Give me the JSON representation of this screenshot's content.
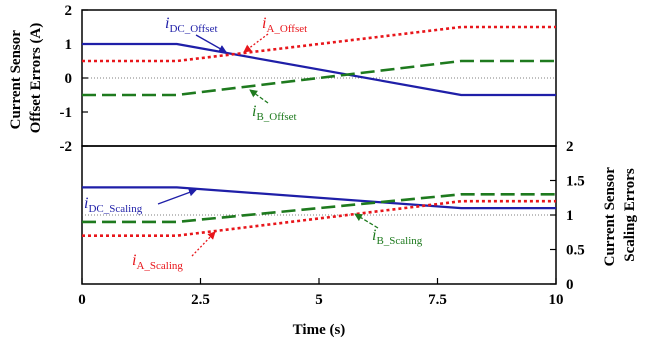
{
  "chart_data": [
    {
      "type": "line",
      "panel": "top",
      "ylabel": [
        "Current Sensor",
        "Offset Errors (A)"
      ],
      "xlim": [
        0,
        10
      ],
      "ylim": [
        -2,
        2
      ],
      "yticks": [
        "2",
        "1",
        "0",
        "-1",
        "-2"
      ],
      "zero_line": 0,
      "series": [
        {
          "key": "idc",
          "name": "DC_Offset",
          "color": "#1f1fa8",
          "dash": "solid",
          "x": [
            0,
            2,
            8,
            10
          ],
          "y": [
            1,
            1,
            -0.5,
            -0.5
          ]
        },
        {
          "key": "ia",
          "name": "A_Offset",
          "color": "#e8161b",
          "dash": "dotted",
          "x": [
            0,
            2,
            8,
            10
          ],
          "y": [
            0.5,
            0.5,
            1.5,
            1.5
          ]
        },
        {
          "key": "ib",
          "name": "B_Offset",
          "color": "#1e7a1e",
          "dash": "dashed",
          "x": [
            0,
            2,
            8,
            10
          ],
          "y": [
            -0.5,
            -0.5,
            0.5,
            0.5
          ]
        }
      ],
      "annotations": [
        {
          "series": "idc",
          "label_main": "i",
          "label_sub": "DC_Offset",
          "color": "#1f1fa8"
        },
        {
          "series": "ia",
          "label_main": "i",
          "label_sub": "A_Offset",
          "color": "#e8161b"
        },
        {
          "series": "ib",
          "label_main": "i",
          "label_sub": "B_Offset",
          "color": "#1e7a1e"
        }
      ]
    },
    {
      "type": "line",
      "panel": "bottom",
      "ylabel": [
        "Current Sensor",
        "Scaling Errors"
      ],
      "xlabel": "Time (s)",
      "xlim": [
        0,
        10
      ],
      "ylim": [
        0,
        2
      ],
      "xticks": [
        "0",
        "2.5",
        "5",
        "7.5",
        "10"
      ],
      "yticks": [
        "2",
        "1.5",
        "1",
        "0.5",
        "0"
      ],
      "ref_line": 1,
      "series": [
        {
          "key": "idc",
          "name": "DC_Scaling",
          "color": "#1f1fa8",
          "dash": "solid",
          "x": [
            0,
            2,
            8,
            10
          ],
          "y": [
            1.4,
            1.4,
            1.1,
            1.1
          ]
        },
        {
          "key": "ia",
          "name": "A_Scaling",
          "color": "#e8161b",
          "dash": "dotted",
          "x": [
            0,
            2,
            8,
            10
          ],
          "y": [
            0.7,
            0.7,
            1.2,
            1.2
          ]
        },
        {
          "key": "ib",
          "name": "B_Scaling",
          "color": "#1e7a1e",
          "dash": "dashed",
          "x": [
            0,
            2,
            8,
            10
          ],
          "y": [
            0.9,
            0.9,
            1.3,
            1.3
          ]
        }
      ],
      "annotations": [
        {
          "series": "idc",
          "label_main": "i",
          "label_sub": "DC_Scaling",
          "color": "#1f1fa8"
        },
        {
          "series": "ia",
          "label_main": "i",
          "label_sub": "A_Scaling",
          "color": "#e8161b"
        },
        {
          "series": "ib",
          "label_main": "i",
          "label_sub": "B_Scaling",
          "color": "#1e7a1e"
        }
      ]
    }
  ]
}
